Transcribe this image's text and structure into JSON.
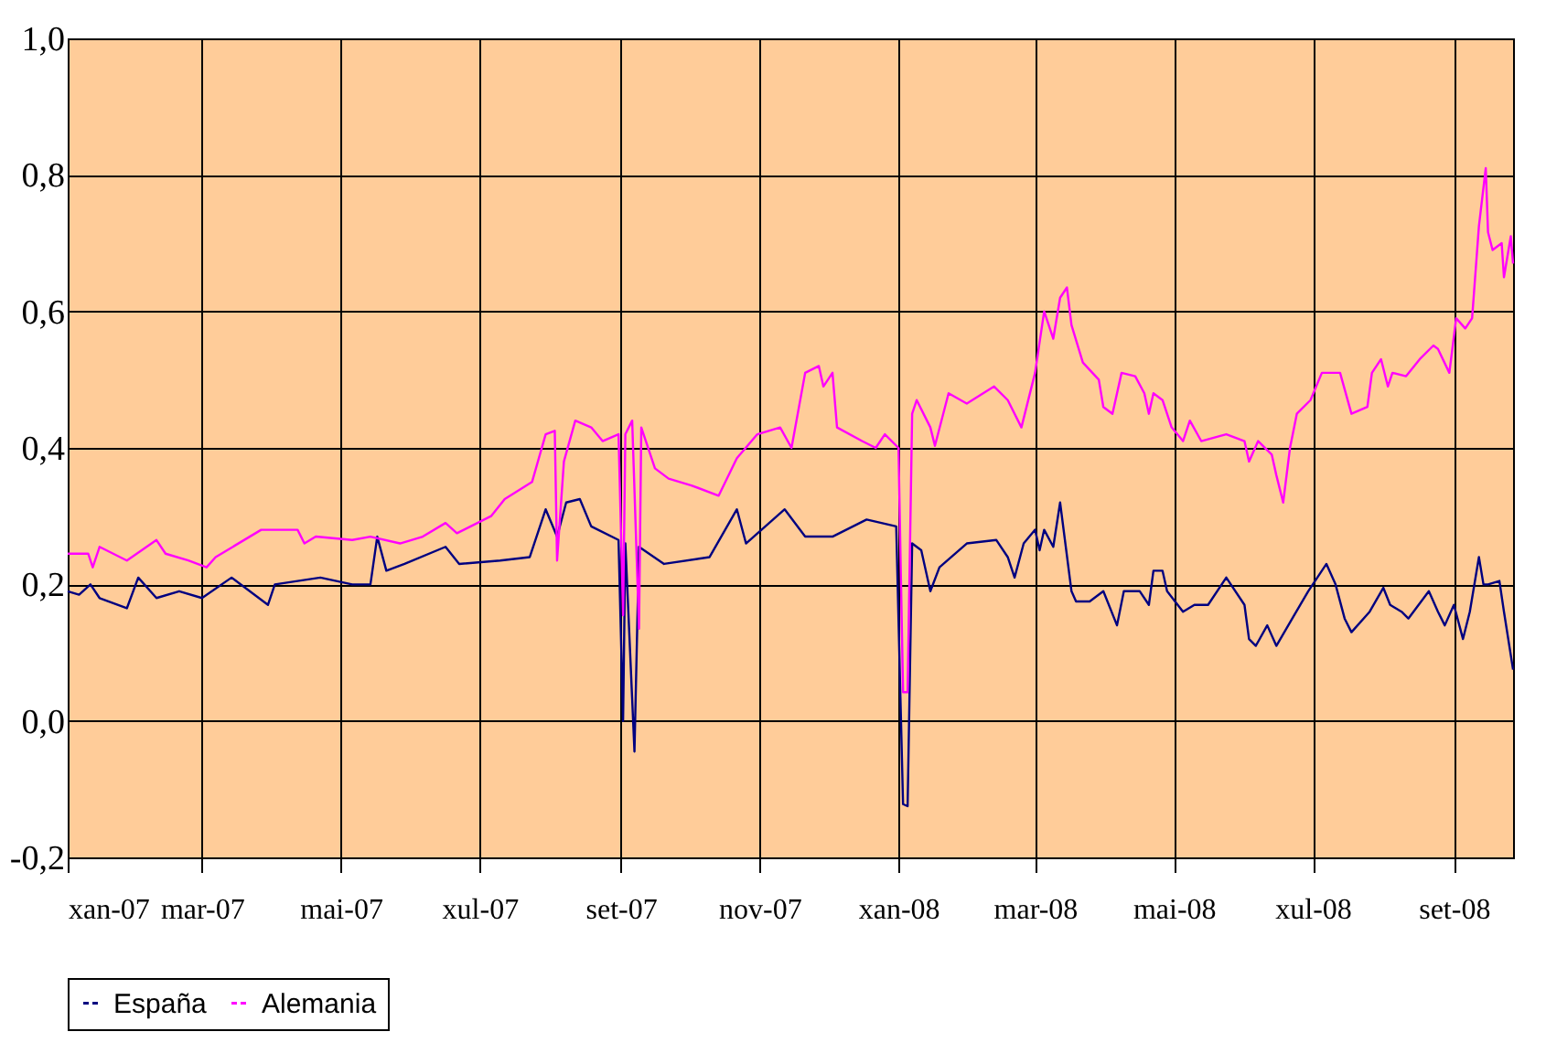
{
  "chart_data": {
    "type": "line",
    "xlim": [
      "2007-01-01",
      "2008-09-27"
    ],
    "xticks": [
      {
        "value": "2007-01-01",
        "label": "xan-07"
      },
      {
        "value": "2007-03-01",
        "label": "mar-07"
      },
      {
        "value": "2007-05-01",
        "label": "mai-07"
      },
      {
        "value": "2007-07-01",
        "label": "xul-07"
      },
      {
        "value": "2007-09-01",
        "label": "set-07"
      },
      {
        "value": "2007-11-01",
        "label": "nov-07"
      },
      {
        "value": "2008-01-01",
        "label": "xan-08"
      },
      {
        "value": "2008-03-01",
        "label": "mar-08"
      },
      {
        "value": "2008-05-01",
        "label": "mai-08"
      },
      {
        "value": "2008-07-01",
        "label": "xul-08"
      },
      {
        "value": "2008-09-01",
        "label": "set-08"
      }
    ],
    "ylim": [
      -0.2,
      1.0
    ],
    "yticks": [
      {
        "value": -0.2,
        "label": "-0,2"
      },
      {
        "value": 0,
        "label": "0,0"
      },
      {
        "value": 0.2,
        "label": "0,2"
      },
      {
        "value": 0.4,
        "label": "0,4"
      },
      {
        "value": 0.6,
        "label": "0,6"
      },
      {
        "value": 0.8,
        "label": "0,8"
      },
      {
        "value": 1.0,
        "label": "1,0"
      }
    ],
    "grid": true,
    "legend": "bottom",
    "marker": "none",
    "line_style": "solid",
    "series": [
      {
        "name": "España",
        "color": "#000080",
        "x": [
          "2007-01-01",
          "2007-01-06",
          "2007-01-11",
          "2007-01-15",
          "2007-01-27",
          "2007-02-01",
          "2007-02-09",
          "2007-02-19",
          "2007-03-01",
          "2007-03-14",
          "2007-03-30",
          "2007-04-02",
          "2007-04-22",
          "2007-05-06",
          "2007-05-14",
          "2007-05-17",
          "2007-05-21",
          "2007-05-29",
          "2007-06-16",
          "2007-06-22",
          "2007-07-10",
          "2007-07-23",
          "2007-07-30",
          "2007-08-04",
          "2007-08-08",
          "2007-08-14",
          "2007-08-19",
          "2007-08-31",
          "2007-09-02",
          "2007-09-03",
          "2007-09-07",
          "2007-09-09",
          "2007-09-20",
          "2007-10-10",
          "2007-10-22",
          "2007-10-26",
          "2007-11-12",
          "2007-11-21",
          "2007-12-03",
          "2007-12-18",
          "2007-12-31",
          "2008-01-03",
          "2008-01-05",
          "2008-01-07",
          "2008-01-11",
          "2008-01-15",
          "2008-01-19",
          "2008-01-31",
          "2008-02-13",
          "2008-02-18",
          "2008-02-21",
          "2008-02-25",
          "2008-03-01",
          "2008-03-03",
          "2008-03-05",
          "2008-03-09",
          "2008-03-12",
          "2008-03-17",
          "2008-03-19",
          "2008-03-25",
          "2008-03-31",
          "2008-04-06",
          "2008-04-09",
          "2008-04-16",
          "2008-04-20",
          "2008-04-22",
          "2008-04-26",
          "2008-04-28",
          "2008-05-05",
          "2008-05-10",
          "2008-05-16",
          "2008-05-24",
          "2008-06-01",
          "2008-06-03",
          "2008-06-06",
          "2008-06-11",
          "2008-06-15",
          "2008-06-22",
          "2008-06-29",
          "2008-07-07",
          "2008-07-11",
          "2008-07-15",
          "2008-07-18",
          "2008-07-26",
          "2008-08-01",
          "2008-08-04",
          "2008-08-09",
          "2008-08-12",
          "2008-08-21",
          "2008-08-25",
          "2008-08-28",
          "2008-09-01",
          "2008-09-05",
          "2008-09-08",
          "2008-09-12",
          "2008-09-14",
          "2008-09-16",
          "2008-09-21",
          "2008-09-23",
          "2008-09-27"
        ],
        "values": [
          0.19,
          0.185,
          0.2,
          0.18,
          0.165,
          0.21,
          0.18,
          0.19,
          0.18,
          0.21,
          0.17,
          0.2,
          0.21,
          0.2,
          0.2,
          0.27,
          0.22,
          0.23,
          0.255,
          0.23,
          0.235,
          0.24,
          0.31,
          0.27,
          0.32,
          0.325,
          0.285,
          0.265,
          0.0,
          0.26,
          -0.045,
          0.255,
          0.23,
          0.24,
          0.31,
          0.26,
          0.31,
          0.27,
          0.27,
          0.295,
          0.285,
          -0.122,
          -0.125,
          0.26,
          0.25,
          0.19,
          0.225,
          0.26,
          0.265,
          0.24,
          0.21,
          0.26,
          0.28,
          0.25,
          0.28,
          0.255,
          0.32,
          0.19,
          0.175,
          0.175,
          0.19,
          0.14,
          0.19,
          0.19,
          0.17,
          0.22,
          0.22,
          0.19,
          0.16,
          0.17,
          0.17,
          0.21,
          0.17,
          0.12,
          0.11,
          0.14,
          0.11,
          0.15,
          0.19,
          0.23,
          0.2,
          0.15,
          0.13,
          0.16,
          0.195,
          0.17,
          0.16,
          0.15,
          0.19,
          0.16,
          0.14,
          0.17,
          0.12,
          0.16,
          0.24,
          0.2,
          0.2,
          0.205,
          0.16,
          0.075
        ]
      },
      {
        "name": "Alemania",
        "color": "#ff00ff",
        "x": [
          "2007-01-01",
          "2007-01-10",
          "2007-01-12",
          "2007-01-15",
          "2007-01-27",
          "2007-02-09",
          "2007-02-13",
          "2007-02-23",
          "2007-03-03",
          "2007-03-07",
          "2007-03-27",
          "2007-04-12",
          "2007-04-15",
          "2007-04-20",
          "2007-05-06",
          "2007-05-14",
          "2007-05-27",
          "2007-06-06",
          "2007-06-16",
          "2007-06-21",
          "2007-07-06",
          "2007-07-12",
          "2007-07-24",
          "2007-07-30",
          "2007-08-03",
          "2007-08-04",
          "2007-08-07",
          "2007-08-12",
          "2007-08-19",
          "2007-08-24",
          "2007-08-31",
          "2007-09-02",
          "2007-09-03",
          "2007-09-06",
          "2007-09-09",
          "2007-09-10",
          "2007-09-16",
          "2007-09-22",
          "2007-10-02",
          "2007-10-14",
          "2007-10-22",
          "2007-10-31",
          "2007-11-10",
          "2007-11-15",
          "2007-11-21",
          "2007-11-27",
          "2007-11-29",
          "2007-12-03",
          "2007-12-05",
          "2007-12-16",
          "2007-12-22",
          "2007-12-26",
          "2008-01-01",
          "2008-01-03",
          "2008-01-05",
          "2008-01-07",
          "2008-01-09",
          "2008-01-15",
          "2008-01-17",
          "2008-01-23",
          "2008-01-31",
          "2008-02-12",
          "2008-02-18",
          "2008-02-24",
          "2008-03-01",
          "2008-03-05",
          "2008-03-09",
          "2008-03-12",
          "2008-03-15",
          "2008-03-17",
          "2008-03-22",
          "2008-03-29",
          "2008-03-31",
          "2008-04-04",
          "2008-04-08",
          "2008-04-14",
          "2008-04-18",
          "2008-04-20",
          "2008-04-22",
          "2008-04-26",
          "2008-04-30",
          "2008-05-05",
          "2008-05-08",
          "2008-05-13",
          "2008-05-24",
          "2008-06-01",
          "2008-06-03",
          "2008-06-07",
          "2008-06-13",
          "2008-06-15",
          "2008-06-18",
          "2008-06-21",
          "2008-06-24",
          "2008-06-30",
          "2008-07-05",
          "2008-07-13",
          "2008-07-18",
          "2008-07-25",
          "2008-07-27",
          "2008-07-31",
          "2008-08-03",
          "2008-08-05",
          "2008-08-11",
          "2008-08-17",
          "2008-08-23",
          "2008-08-25",
          "2008-08-30",
          "2008-09-02",
          "2008-09-06",
          "2008-09-09",
          "2008-09-12",
          "2008-09-15",
          "2008-09-16",
          "2008-09-18",
          "2008-09-22",
          "2008-09-23",
          "2008-09-26",
          "2008-09-27"
        ],
        "values": [
          0.245,
          0.245,
          0.225,
          0.255,
          0.235,
          0.265,
          0.245,
          0.235,
          0.225,
          0.24,
          0.28,
          0.28,
          0.26,
          0.27,
          0.265,
          0.27,
          0.26,
          0.27,
          0.29,
          0.275,
          0.3,
          0.325,
          0.35,
          0.42,
          0.425,
          0.235,
          0.38,
          0.44,
          0.43,
          0.41,
          0.42,
          0.155,
          0.42,
          0.44,
          0.135,
          0.43,
          0.37,
          0.355,
          0.345,
          0.33,
          0.385,
          0.42,
          0.43,
          0.4,
          0.51,
          0.52,
          0.49,
          0.51,
          0.43,
          0.41,
          0.4,
          0.42,
          0.4,
          0.042,
          0.042,
          0.45,
          0.47,
          0.43,
          0.403,
          0.48,
          0.465,
          0.49,
          0.47,
          0.43,
          0.51,
          0.6,
          0.56,
          0.62,
          0.635,
          0.58,
          0.525,
          0.5,
          0.46,
          0.45,
          0.51,
          0.505,
          0.48,
          0.45,
          0.48,
          0.47,
          0.43,
          0.41,
          0.44,
          0.41,
          0.42,
          0.41,
          0.38,
          0.41,
          0.39,
          0.36,
          0.32,
          0.4,
          0.45,
          0.47,
          0.51,
          0.51,
          0.45,
          0.46,
          0.51,
          0.53,
          0.49,
          0.51,
          0.505,
          0.53,
          0.55,
          0.545,
          0.51,
          0.59,
          0.575,
          0.59,
          0.725,
          0.81,
          0.716,
          0.69,
          0.7,
          0.65,
          0.71,
          0.67
        ]
      }
    ]
  }
}
